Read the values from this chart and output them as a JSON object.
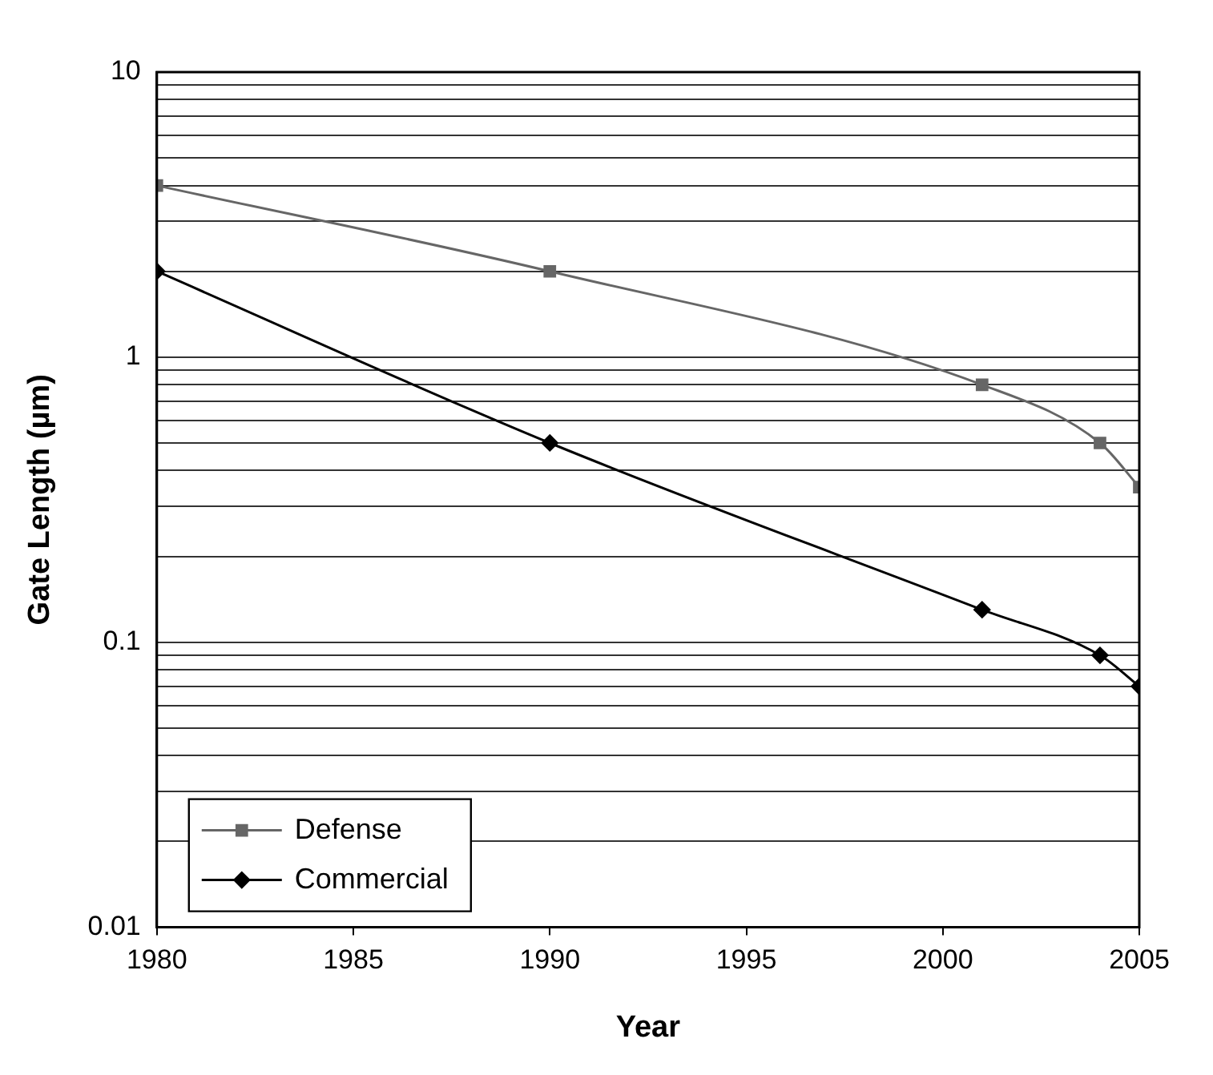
{
  "chart_data": {
    "type": "line",
    "xlabel": "Year",
    "ylabel": "Gate Length (µm)",
    "x": [
      1980,
      1990,
      2001,
      2004,
      2005
    ],
    "series": [
      {
        "name": "Defense",
        "color": "#666666",
        "marker": "square",
        "values": [
          4,
          2,
          0.8,
          0.5,
          0.35
        ]
      },
      {
        "name": "Commercial",
        "color": "#000000",
        "marker": "diamond",
        "values": [
          2,
          0.5,
          0.13,
          0.09,
          0.07
        ]
      }
    ],
    "log": "y",
    "xlim": [
      1980,
      2005
    ],
    "xticks": [
      1980,
      1985,
      1990,
      1995,
      2000,
      2005
    ],
    "ylim": [
      0.01,
      10
    ],
    "yticks": [
      0.01,
      {
        "value": 0.02,
        "label": null
      },
      {
        "value": 0.03,
        "label": null
      },
      {
        "value": 0.04,
        "label": null
      },
      {
        "value": 0.05,
        "label": null
      },
      {
        "value": 0.06,
        "label": null
      },
      {
        "value": 0.07,
        "label": null
      },
      {
        "value": 0.08,
        "label": null
      },
      {
        "value": 0.09,
        "label": null
      },
      0.1,
      {
        "value": 0.2,
        "label": null
      },
      {
        "value": 0.3,
        "label": null
      },
      {
        "value": 0.4,
        "label": null
      },
      {
        "value": 0.5,
        "label": null
      },
      {
        "value": 0.6,
        "label": null
      },
      {
        "value": 0.7,
        "label": null
      },
      {
        "value": 0.8,
        "label": null
      },
      {
        "value": 0.9,
        "label": null
      },
      1,
      {
        "value": 2,
        "label": null
      },
      {
        "value": 3,
        "label": null
      },
      {
        "value": 4,
        "label": null
      },
      {
        "value": 5,
        "label": null
      },
      {
        "value": 6,
        "label": null
      },
      {
        "value": 7,
        "label": null
      },
      {
        "value": 8,
        "label": null
      },
      {
        "value": 9,
        "label": null
      },
      10
    ],
    "grid": "y",
    "legend": "bottom left",
    "line_style": "solid"
  }
}
